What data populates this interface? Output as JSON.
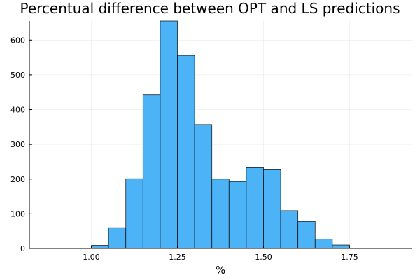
{
  "chart_data": {
    "type": "bar",
    "title": "Percentual difference between OPT and LS predictions",
    "xlabel": "%",
    "ylabel": "",
    "xlim": [
      0.82,
      1.93
    ],
    "ylim": [
      0,
      655
    ],
    "bin_width": 0.05,
    "bins": [
      {
        "start": 0.85,
        "end": 0.9,
        "count": 1
      },
      {
        "start": 0.9,
        "end": 0.95,
        "count": 0
      },
      {
        "start": 0.95,
        "end": 1.0,
        "count": 1
      },
      {
        "start": 1.0,
        "end": 1.05,
        "count": 9
      },
      {
        "start": 1.05,
        "end": 1.1,
        "count": 60
      },
      {
        "start": 1.1,
        "end": 1.15,
        "count": 201
      },
      {
        "start": 1.15,
        "end": 1.2,
        "count": 442
      },
      {
        "start": 1.2,
        "end": 1.25,
        "count": 655
      },
      {
        "start": 1.25,
        "end": 1.3,
        "count": 556
      },
      {
        "start": 1.3,
        "end": 1.35,
        "count": 357
      },
      {
        "start": 1.35,
        "end": 1.4,
        "count": 200
      },
      {
        "start": 1.4,
        "end": 1.45,
        "count": 193
      },
      {
        "start": 1.45,
        "end": 1.5,
        "count": 233
      },
      {
        "start": 1.5,
        "end": 1.55,
        "count": 227
      },
      {
        "start": 1.55,
        "end": 1.6,
        "count": 109
      },
      {
        "start": 1.6,
        "end": 1.65,
        "count": 78
      },
      {
        "start": 1.65,
        "end": 1.7,
        "count": 27
      },
      {
        "start": 1.7,
        "end": 1.75,
        "count": 10
      },
      {
        "start": 1.75,
        "end": 1.8,
        "count": 0
      },
      {
        "start": 1.8,
        "end": 1.85,
        "count": 1
      },
      {
        "start": 1.85,
        "end": 1.9,
        "count": 0
      }
    ],
    "x_ticks": [
      {
        "value": 1.0,
        "label": "1.00"
      },
      {
        "value": 1.25,
        "label": "1.25"
      },
      {
        "value": 1.5,
        "label": "1.50"
      },
      {
        "value": 1.75,
        "label": "1.75"
      }
    ],
    "y_ticks": [
      {
        "value": 0,
        "label": "0"
      },
      {
        "value": 100,
        "label": "100"
      },
      {
        "value": 200,
        "label": "200"
      },
      {
        "value": 300,
        "label": "300"
      },
      {
        "value": 400,
        "label": "400"
      },
      {
        "value": 500,
        "label": "500"
      },
      {
        "value": 600,
        "label": "600"
      }
    ],
    "grid": true,
    "legend": false,
    "bar_color": "#4db3f7",
    "bar_edge_color": "#000000"
  }
}
